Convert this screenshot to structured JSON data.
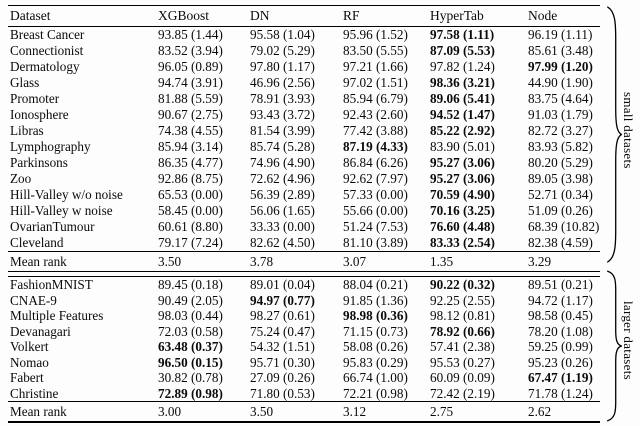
{
  "table": {
    "columns": [
      "Dataset",
      "XGBoost",
      "DN",
      "RF",
      "HyperTab",
      "Node"
    ],
    "sections": [
      {
        "side_label": "small datasets",
        "rows": [
          {
            "dataset": "Breast Cancer",
            "values": [
              "93.85 (1.44)",
              "95.58 (1.04)",
              "95.96 (1.52)",
              "97.58 (1.11)",
              "96.19 (1.11)"
            ],
            "bold": 3
          },
          {
            "dataset": "Connectionist",
            "values": [
              "83.52 (3.94)",
              "79.02 (5.29)",
              "83.50 (5.55)",
              "87.09 (5.53)",
              "85.61 (3.48)"
            ],
            "bold": 3
          },
          {
            "dataset": "Dermatology",
            "values": [
              "96.05 (0.89)",
              "97.80 (1.17)",
              "97.21 (1.66)",
              "97.82 (1.24)",
              "97.99 (1.20)"
            ],
            "bold": 4
          },
          {
            "dataset": "Glass",
            "values": [
              "94.74 (3.91)",
              "46.96 (2.56)",
              "97.02 (1.51)",
              "98.36 (3.21)",
              "44.90 (1.90)"
            ],
            "bold": 3
          },
          {
            "dataset": "Promoter",
            "values": [
              "81.88 (5.59)",
              "78.91 (3.93)",
              "85.94 (6.79)",
              "89.06 (5.41)",
              "83.75 (4.64)"
            ],
            "bold": 3
          },
          {
            "dataset": "Ionosphere",
            "values": [
              "90.67 (2.75)",
              "93.43 (3.72)",
              "92.43 (2.60)",
              "94.52 (1.47)",
              "91.03 (1.79)"
            ],
            "bold": 3
          },
          {
            "dataset": "Libras",
            "values": [
              "74.38 (4.55)",
              "81.54 (3.99)",
              "77.42 (3.88)",
              "85.22 (2.92)",
              "82.72 (3.27)"
            ],
            "bold": 3
          },
          {
            "dataset": "Lymphography",
            "values": [
              "85.94 (3.14)",
              "85.74 (5.28)",
              "87.19 (4.33)",
              "83.90 (5.01)",
              "83.93 (5.82)"
            ],
            "bold": 2
          },
          {
            "dataset": "Parkinsons",
            "values": [
              "86.35 (4.77)",
              "74.96 (4.90)",
              "86.84 (6.26)",
              "95.27 (3.06)",
              "80.20 (5.29)"
            ],
            "bold": 3
          },
          {
            "dataset": "Zoo",
            "values": [
              "92.86 (8.75)",
              "72.62 (4.96)",
              "92.62 (7.97)",
              "95.27 (3.06)",
              "89.05 (3.98)"
            ],
            "bold": 3
          },
          {
            "dataset": "Hill-Valley w/o noise",
            "values": [
              "65.53 (0.00)",
              "56.39 (2.89)",
              "57.33 (0.00)",
              "70.59 (4.90)",
              "52.71 (0.34)"
            ],
            "bold": 3
          },
          {
            "dataset": "Hill-Valley w noise",
            "values": [
              "58.45 (0.00)",
              "56.06 (1.65)",
              "55.66 (0.00)",
              "70.16 (3.25)",
              "51.09 (0.26)"
            ],
            "bold": 3
          },
          {
            "dataset": "OvarianTumour",
            "values": [
              "60.61 (8.80)",
              "33.33 (0.00)",
              "51.24 (7.53)",
              "76.60 (4.48)",
              "68.39 (10.82)"
            ],
            "bold": 3
          },
          {
            "dataset": "Cleveland",
            "values": [
              "79.17 (7.24)",
              "82.62 (4.50)",
              "81.10 (3.89)",
              "83.33 (2.54)",
              "82.38 (4.59)"
            ],
            "bold": 3
          }
        ],
        "mean_rank_label": "Mean rank",
        "mean_rank_values": [
          "3.50",
          "3.78",
          "3.07",
          "1.35",
          "3.29"
        ]
      },
      {
        "side_label": "larger datasets",
        "rows": [
          {
            "dataset": "FashionMNIST",
            "values": [
              "89.45 (0.18)",
              "89.01 (0.04)",
              "88.04 (0.21)",
              "90.22 (0.32)",
              "89.51 (0.21)"
            ],
            "bold": 3
          },
          {
            "dataset": "CNAE-9",
            "values": [
              "90.49 (2.05)",
              "94.97 (0.77)",
              "91.85 (1.36)",
              "92.25 (2.55)",
              "94.72 (1.17)"
            ],
            "bold": 1
          },
          {
            "dataset": "Multiple Features",
            "values": [
              "98.03 (0.44)",
              "98.27 (0.61)",
              "98.98 (0.36)",
              "98.12 (0.81)",
              "98.58 (0.45)"
            ],
            "bold": 2
          },
          {
            "dataset": "Devanagari",
            "values": [
              "72.03 (0.58)",
              "75.24 (0.47)",
              "71.15 (0.73)",
              "78.92 (0.66)",
              "78.20 (1.08)"
            ],
            "bold": 3
          },
          {
            "dataset": "Volkert",
            "values": [
              "63.48 (0.37)",
              "54.32 (1.51)",
              "58.08 (0.26)",
              "57.41 (2.38)",
              "59.25 (0.99)"
            ],
            "bold": 0
          },
          {
            "dataset": "Nomao",
            "values": [
              "96.50 (0.15)",
              "95.71 (0.30)",
              "95.83 (0.29)",
              "95.53 (0.27)",
              "95.23 (0.26)"
            ],
            "bold": 0
          },
          {
            "dataset": "Fabert",
            "values": [
              "30.82 (0.78)",
              "27.09 (0.26)",
              "66.74 (1.00)",
              "60.09 (0.09)",
              "67.47 (1.19)"
            ],
            "bold": 4
          },
          {
            "dataset": "Christine",
            "values": [
              "72.89 (0.98)",
              "71.80 (0.53)",
              "72.21 (0.98)",
              "72.42 (2.19)",
              "71.78 (1.24)"
            ],
            "bold": 0
          }
        ],
        "mean_rank_label": "Mean rank",
        "mean_rank_values": [
          "3.00",
          "3.50",
          "3.12",
          "2.75",
          "2.62"
        ]
      }
    ]
  }
}
